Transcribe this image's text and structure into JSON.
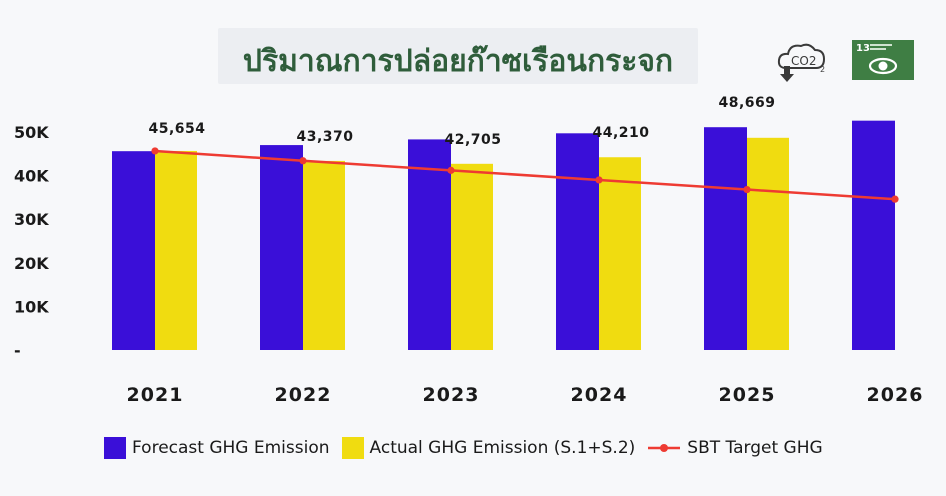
{
  "title": "ปริมาณการปล่อยก๊าซเรือนกระจก",
  "icons": [
    {
      "name": "co2-reduction-icon",
      "label": "CO2"
    },
    {
      "name": "sdg-13-climate-action-icon",
      "label": "13"
    }
  ],
  "colors": {
    "forecast": "#3a0fd8",
    "actual": "#f0dc10",
    "target": "#ee3b32",
    "title": "#2f5d3b",
    "sdg": "#3f7e44"
  },
  "chart_data": {
    "type": "bar",
    "categories": [
      "2021",
      "2022",
      "2023",
      "2024",
      "2025",
      "2026"
    ],
    "series": [
      {
        "name": "Forecast GHG Emission",
        "type": "bar",
        "values": [
          45600,
          47000,
          48300,
          49700,
          51100,
          52600
        ]
      },
      {
        "name": "Actual GHG Emission (S.1+S.2)",
        "type": "bar",
        "values": [
          45654,
          43370,
          42705,
          44210,
          48669,
          null
        ]
      },
      {
        "name": "SBT Target GHG",
        "type": "line",
        "values": [
          45654,
          43400,
          41200,
          39000,
          36800,
          34600
        ]
      }
    ],
    "data_labels": [
      "45,654",
      "43,370",
      "42,705",
      "44,210",
      "48,669"
    ],
    "ytick_labels": [
      "-",
      "10K",
      "20K",
      "30K",
      "40K",
      "50K"
    ],
    "yticks": [
      0,
      10000,
      20000,
      30000,
      40000,
      50000
    ],
    "ylim": [
      0,
      50000
    ],
    "legend_position": "bottom",
    "grid": false
  }
}
